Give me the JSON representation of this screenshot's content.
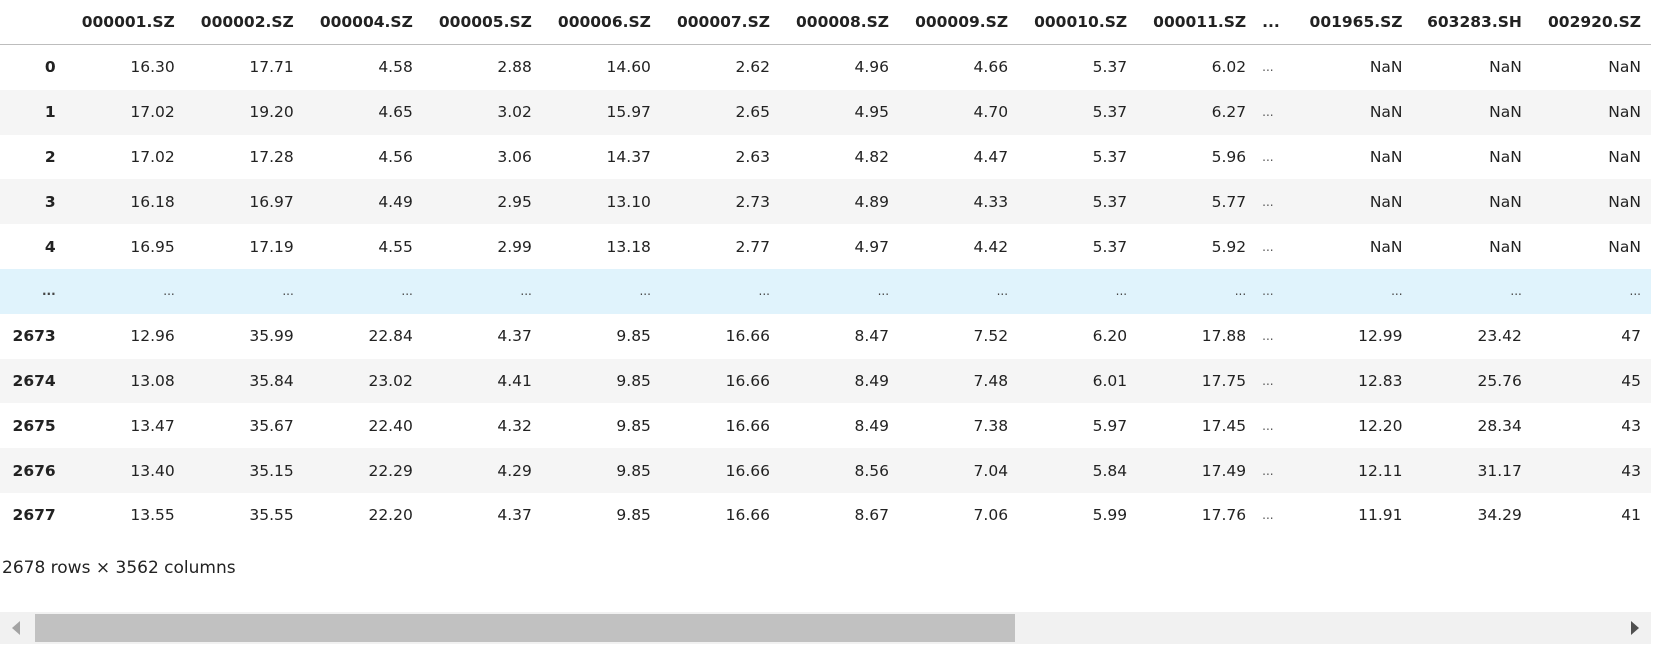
{
  "table": {
    "columns": [
      "000001.SZ",
      "000002.SZ",
      "000004.SZ",
      "000005.SZ",
      "000006.SZ",
      "000007.SZ",
      "000008.SZ",
      "000009.SZ",
      "000010.SZ",
      "000011.SZ",
      "...",
      "001965.SZ",
      "603283.SH",
      "002920.SZ"
    ],
    "rows": [
      {
        "index": "0",
        "cells": [
          "16.30",
          "17.71",
          "4.58",
          "2.88",
          "14.60",
          "2.62",
          "4.96",
          "4.66",
          "5.37",
          "6.02",
          "...",
          "NaN",
          "NaN",
          "NaN"
        ]
      },
      {
        "index": "1",
        "cells": [
          "17.02",
          "19.20",
          "4.65",
          "3.02",
          "15.97",
          "2.65",
          "4.95",
          "4.70",
          "5.37",
          "6.27",
          "...",
          "NaN",
          "NaN",
          "NaN"
        ]
      },
      {
        "index": "2",
        "cells": [
          "17.02",
          "17.28",
          "4.56",
          "3.06",
          "14.37",
          "2.63",
          "4.82",
          "4.47",
          "5.37",
          "5.96",
          "...",
          "NaN",
          "NaN",
          "NaN"
        ]
      },
      {
        "index": "3",
        "cells": [
          "16.18",
          "16.97",
          "4.49",
          "2.95",
          "13.10",
          "2.73",
          "4.89",
          "4.33",
          "5.37",
          "5.77",
          "...",
          "NaN",
          "NaN",
          "NaN"
        ]
      },
      {
        "index": "4",
        "cells": [
          "16.95",
          "17.19",
          "4.55",
          "2.99",
          "13.18",
          "2.77",
          "4.97",
          "4.42",
          "5.37",
          "5.92",
          "...",
          "NaN",
          "NaN",
          "NaN"
        ]
      },
      {
        "index": "...",
        "ellipsis": true,
        "cells": [
          "...",
          "...",
          "...",
          "...",
          "...",
          "...",
          "...",
          "...",
          "...",
          "...",
          "...",
          "...",
          "...",
          "..."
        ]
      },
      {
        "index": "2673",
        "cells": [
          "12.96",
          "35.99",
          "22.84",
          "4.37",
          "9.85",
          "16.66",
          "8.47",
          "7.52",
          "6.20",
          "17.88",
          "...",
          "12.99",
          "23.42",
          "47"
        ]
      },
      {
        "index": "2674",
        "cells": [
          "13.08",
          "35.84",
          "23.02",
          "4.41",
          "9.85",
          "16.66",
          "8.49",
          "7.48",
          "6.01",
          "17.75",
          "...",
          "12.83",
          "25.76",
          "45"
        ]
      },
      {
        "index": "2675",
        "cells": [
          "13.47",
          "35.67",
          "22.40",
          "4.32",
          "9.85",
          "16.66",
          "8.49",
          "7.38",
          "5.97",
          "17.45",
          "...",
          "12.20",
          "28.34",
          "43"
        ]
      },
      {
        "index": "2676",
        "cells": [
          "13.40",
          "35.15",
          "22.29",
          "4.29",
          "9.85",
          "16.66",
          "8.56",
          "7.04",
          "5.84",
          "17.49",
          "...",
          "12.11",
          "31.17",
          "43"
        ]
      },
      {
        "index": "2677",
        "cells": [
          "13.55",
          "35.55",
          "22.20",
          "4.37",
          "9.85",
          "16.66",
          "8.67",
          "7.06",
          "5.99",
          "17.76",
          "...",
          "11.91",
          "34.29",
          "41"
        ]
      }
    ]
  },
  "footer": {
    "shape": "2678 rows × 3562 columns"
  },
  "scrollbar": {
    "position_fraction": 0.0,
    "visible_fraction": 0.62
  }
}
